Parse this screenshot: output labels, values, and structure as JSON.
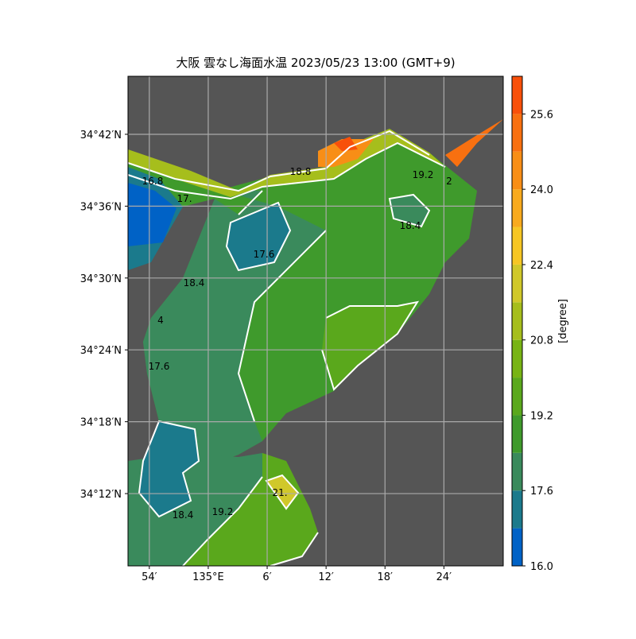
{
  "title": "大阪 雲なし海面水温 2023/05/23 13:00 (GMT+9)",
  "map": {
    "xlim": [
      134.8638,
      135.5007
    ],
    "ylim": [
      34.0994,
      34.7807
    ],
    "xticks": [
      {
        "value": 134.9,
        "label": "54′"
      },
      {
        "value": 135.0,
        "label": "135°E"
      },
      {
        "value": 135.1,
        "label": "6′"
      },
      {
        "value": 135.2,
        "label": "12′"
      },
      {
        "value": 135.3,
        "label": "18′"
      },
      {
        "value": 135.4,
        "label": "24′"
      }
    ],
    "yticks": [
      {
        "value": 34.7,
        "label": "34°42′N"
      },
      {
        "value": 34.6,
        "label": "34°36′N"
      },
      {
        "value": 34.5,
        "label": "34°30′N"
      },
      {
        "value": 34.4,
        "label": "34°24′N"
      },
      {
        "value": 34.3,
        "label": "34°18′N"
      },
      {
        "value": 34.2,
        "label": "34°12′N"
      }
    ],
    "grid": true,
    "contour_labels": [
      "16.8",
      "17.",
      "18.8",
      "19.2",
      "2",
      "18.4",
      "17.6",
      "18.4",
      "4",
      "17.6",
      "21.",
      "18.4",
      "19.2"
    ]
  },
  "colorbar": {
    "label": "[degree]",
    "lim": [
      16.0,
      26.4
    ],
    "ticks": [
      {
        "value": 16,
        "label": "16.0"
      },
      17.6,
      19.2,
      20.8,
      22.4,
      {
        "value": 24,
        "label": "24.0"
      },
      25.6
    ],
    "colors": [
      "#0062c6",
      "#1b7a8c",
      "#3a8a5c",
      "#3f9a2c",
      "#5aa81c",
      "#78b414",
      "#a6be1c",
      "#d0c82a",
      "#f6c624",
      "#f8aa1e",
      "#f88e16",
      "#f87010",
      "#f8500a"
    ]
  }
}
